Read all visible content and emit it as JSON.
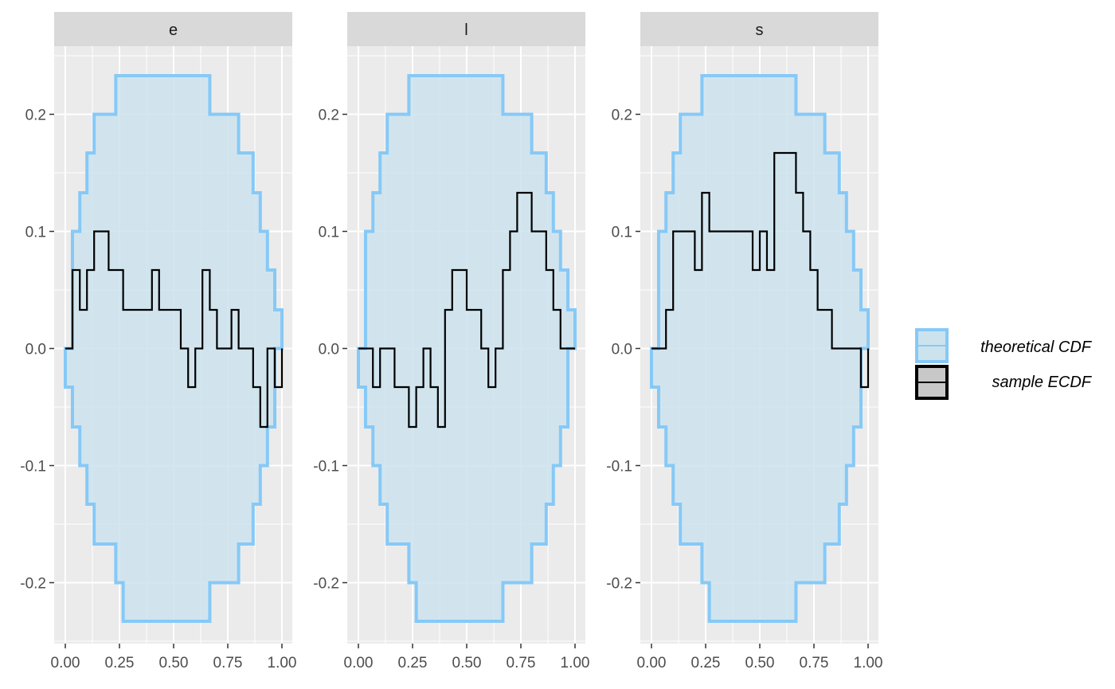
{
  "chart_data": {
    "type": "line",
    "facets": [
      "e",
      "l",
      "s"
    ],
    "xlim": [
      0,
      1
    ],
    "ylim": [
      -0.25,
      0.25
    ],
    "x_ticks": [
      0.0,
      0.25,
      0.5,
      0.75,
      1.0
    ],
    "x_tick_labels": [
      "0.00",
      "0.25",
      "0.50",
      "0.75",
      "1.00"
    ],
    "y_ticks": [
      -0.2,
      -0.1,
      0.0,
      0.1,
      0.2
    ],
    "y_tick_labels": [
      "-0.2",
      "-0.1",
      "0.0",
      "0.1",
      "0.2"
    ],
    "grid": true,
    "legend_position": "right",
    "colors": {
      "band_fill": "#cce3ee",
      "band_line": "#86c9f7",
      "ecdf_line": "#000000",
      "panel_bg": "#ebebeb",
      "grid": "#ffffff",
      "strip_bg": "#d9d9d9"
    },
    "band": {
      "x": [
        0.0,
        0.033,
        0.067,
        0.1,
        0.133,
        0.167,
        0.233,
        0.267,
        0.367,
        0.633,
        0.667,
        0.767,
        0.8,
        0.867,
        0.9,
        0.933,
        0.967,
        1.0
      ],
      "upper": [
        0.0,
        0.1,
        0.133,
        0.167,
        0.2,
        0.2,
        0.233,
        0.233,
        0.233,
        0.233,
        0.2,
        0.2,
        0.167,
        0.133,
        0.1,
        0.067,
        0.033,
        0.0
      ],
      "lower": [
        0.0,
        -0.033,
        -0.067,
        -0.1,
        -0.133,
        -0.167,
        -0.167,
        -0.2,
        -0.233,
        -0.233,
        -0.233,
        -0.2,
        -0.2,
        -0.167,
        -0.133,
        -0.1,
        -0.067,
        0.0
      ]
    },
    "series": [
      {
        "facet": "e",
        "x": [
          0.0,
          0.033,
          0.067,
          0.1,
          0.133,
          0.167,
          0.2,
          0.267,
          0.4,
          0.433,
          0.533,
          0.567,
          0.6,
          0.633,
          0.667,
          0.7,
          0.767,
          0.8,
          0.867,
          0.9,
          0.933,
          0.967,
          1.0
        ],
        "y": [
          0.0,
          0.067,
          0.033,
          0.067,
          0.1,
          0.1,
          0.067,
          0.033,
          0.067,
          0.033,
          0.0,
          -0.033,
          0.0,
          0.067,
          0.033,
          0.0,
          0.033,
          0.0,
          -0.033,
          -0.067,
          0.0,
          -0.033,
          0.0
        ]
      },
      {
        "facet": "l",
        "x": [
          0.0,
          0.067,
          0.1,
          0.133,
          0.167,
          0.233,
          0.267,
          0.3,
          0.333,
          0.367,
          0.4,
          0.433,
          0.5,
          0.567,
          0.6,
          0.633,
          0.667,
          0.7,
          0.733,
          0.8,
          0.867,
          0.9,
          0.933,
          1.0
        ],
        "y": [
          0.0,
          -0.033,
          0.0,
          0.0,
          -0.033,
          -0.067,
          -0.033,
          0.0,
          -0.033,
          -0.067,
          0.033,
          0.067,
          0.033,
          0.0,
          -0.033,
          0.0,
          0.067,
          0.1,
          0.133,
          0.1,
          0.067,
          0.033,
          0.0,
          0.0
        ]
      },
      {
        "facet": "s",
        "x": [
          0.0,
          0.067,
          0.1,
          0.167,
          0.2,
          0.233,
          0.267,
          0.3,
          0.333,
          0.467,
          0.5,
          0.533,
          0.567,
          0.6,
          0.667,
          0.7,
          0.733,
          0.767,
          0.833,
          0.9,
          0.967,
          1.0
        ],
        "y": [
          0.0,
          0.033,
          0.1,
          0.1,
          0.067,
          0.133,
          0.1,
          0.1,
          0.1,
          0.067,
          0.1,
          0.067,
          0.167,
          0.167,
          0.133,
          0.1,
          0.067,
          0.033,
          0.0,
          0.0,
          -0.033,
          0.0
        ]
      }
    ],
    "legend": [
      {
        "key": "band",
        "label": "theoretical CDF"
      },
      {
        "key": "ecdf",
        "label": "sample ECDF"
      }
    ]
  }
}
